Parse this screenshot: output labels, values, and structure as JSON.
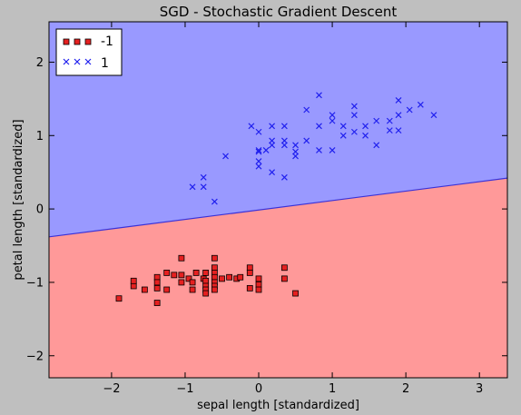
{
  "chart_data": {
    "type": "scatter",
    "title": "SGD - Stochastic Gradient Descent",
    "xlabel": "sepal length [standardized]",
    "ylabel": "petal length [standardized]",
    "xlim": [
      -2.85,
      3.38
    ],
    "ylim": [
      -2.3,
      2.55
    ],
    "xticks": [
      -2,
      -1,
      0,
      1,
      2,
      3
    ],
    "yticks": [
      -2,
      -1,
      0,
      1,
      2
    ],
    "xtick_labels": [
      "−2",
      "−1",
      "0",
      "1",
      "2",
      "3"
    ],
    "ytick_labels": [
      "−2",
      "−1",
      "0",
      "1",
      "2"
    ],
    "grid": false,
    "legend_position": "top-left",
    "decision_boundary": {
      "y_at_xmin": -0.38,
      "y_at_xmax": 0.42
    },
    "regions": [
      {
        "label": "-1",
        "color": "#ff9999"
      },
      {
        "label": "1",
        "color": "#9999ff"
      }
    ],
    "boundary_color": "#3a32d8",
    "series": [
      {
        "name": "-1",
        "marker": "square",
        "color": "#e62020",
        "points": [
          [
            -1.9,
            -1.22
          ],
          [
            -1.7,
            -1.05
          ],
          [
            -1.7,
            -0.98
          ],
          [
            -1.55,
            -1.1
          ],
          [
            -1.38,
            -1.28
          ],
          [
            -1.38,
            -0.93
          ],
          [
            -1.38,
            -1.0
          ],
          [
            -1.38,
            -1.08
          ],
          [
            -1.25,
            -0.87
          ],
          [
            -1.25,
            -1.1
          ],
          [
            -1.15,
            -0.9
          ],
          [
            -1.05,
            -0.67
          ],
          [
            -1.05,
            -0.9
          ],
          [
            -1.05,
            -1.0
          ],
          [
            -0.95,
            -0.95
          ],
          [
            -0.9,
            -1.0
          ],
          [
            -0.9,
            -1.1
          ],
          [
            -0.85,
            -0.87
          ],
          [
            -0.75,
            -0.95
          ],
          [
            -0.72,
            -0.87
          ],
          [
            -0.72,
            -0.98
          ],
          [
            -0.72,
            -1.05
          ],
          [
            -0.72,
            -1.1
          ],
          [
            -0.72,
            -1.15
          ],
          [
            -0.6,
            -0.67
          ],
          [
            -0.6,
            -0.8
          ],
          [
            -0.6,
            -0.87
          ],
          [
            -0.6,
            -0.93
          ],
          [
            -0.6,
            -1.0
          ],
          [
            -0.6,
            -1.05
          ],
          [
            -0.6,
            -1.1
          ],
          [
            -0.5,
            -0.95
          ],
          [
            -0.4,
            -0.93
          ],
          [
            -0.3,
            -0.95
          ],
          [
            -0.25,
            -0.93
          ],
          [
            -0.12,
            -0.8
          ],
          [
            -0.12,
            -0.87
          ],
          [
            -0.12,
            -1.08
          ],
          [
            0.0,
            -0.95
          ],
          [
            0.0,
            -1.03
          ],
          [
            0.0,
            -1.1
          ],
          [
            0.35,
            -0.8
          ],
          [
            0.35,
            -0.95
          ],
          [
            0.5,
            -1.15
          ]
        ]
      },
      {
        "name": "1",
        "marker": "x",
        "color": "#2020ee",
        "points": [
          [
            -0.9,
            0.3
          ],
          [
            -0.75,
            0.43
          ],
          [
            -0.75,
            0.3
          ],
          [
            -0.6,
            0.1
          ],
          [
            -0.45,
            0.72
          ],
          [
            -0.1,
            1.13
          ],
          [
            0.0,
            1.05
          ],
          [
            0.0,
            0.8
          ],
          [
            0.0,
            0.78
          ],
          [
            0.0,
            0.65
          ],
          [
            0.0,
            0.58
          ],
          [
            0.1,
            0.8
          ],
          [
            0.18,
            1.13
          ],
          [
            0.18,
            0.93
          ],
          [
            0.18,
            0.87
          ],
          [
            0.18,
            0.5
          ],
          [
            0.35,
            1.13
          ],
          [
            0.35,
            0.93
          ],
          [
            0.35,
            0.87
          ],
          [
            0.35,
            0.43
          ],
          [
            0.5,
            0.87
          ],
          [
            0.5,
            0.78
          ],
          [
            0.5,
            0.72
          ],
          [
            0.65,
            1.35
          ],
          [
            0.65,
            0.93
          ],
          [
            0.82,
            1.55
          ],
          [
            0.82,
            1.13
          ],
          [
            0.82,
            0.8
          ],
          [
            1.0,
            1.28
          ],
          [
            1.0,
            1.2
          ],
          [
            1.0,
            0.8
          ],
          [
            1.15,
            1.13
          ],
          [
            1.15,
            1.0
          ],
          [
            1.3,
            1.4
          ],
          [
            1.3,
            1.28
          ],
          [
            1.3,
            1.05
          ],
          [
            1.45,
            1.13
          ],
          [
            1.45,
            1.0
          ],
          [
            1.6,
            1.2
          ],
          [
            1.6,
            0.87
          ],
          [
            1.78,
            1.2
          ],
          [
            1.78,
            1.07
          ],
          [
            1.9,
            1.48
          ],
          [
            1.9,
            1.28
          ],
          [
            1.9,
            1.07
          ],
          [
            2.05,
            1.35
          ],
          [
            2.2,
            1.42
          ],
          [
            2.38,
            1.28
          ]
        ]
      }
    ]
  }
}
